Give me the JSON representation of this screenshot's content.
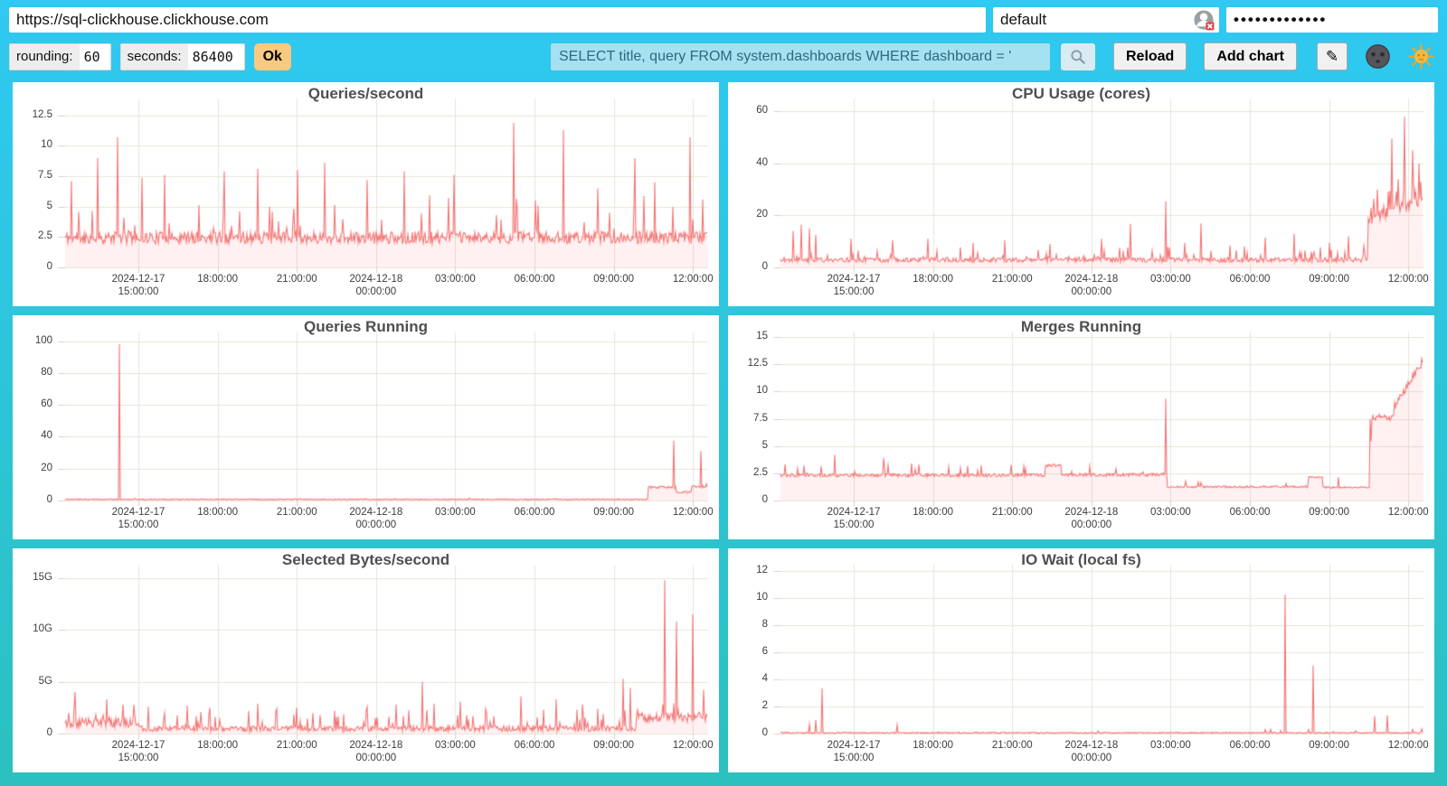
{
  "toolbar": {
    "url_value": "https://sql-clickhouse.clickhouse.com",
    "user_value": "default",
    "password_value": "•••••••••••••",
    "rounding_label": "rounding:",
    "rounding_value": "60",
    "seconds_label": "seconds:",
    "seconds_value": "86400",
    "ok_label": "Ok",
    "query_value": "SELECT title, query FROM system.dashboards WHERE dashboard = '",
    "reload_label": "Reload",
    "add_chart_label": "Add chart",
    "edit_label": "✎",
    "icon_names": {
      "search": "magnifier-icon",
      "user_status": "user-blocked-icon",
      "theme_dark": "moon-face-icon",
      "theme_light": "sun-face-icon"
    }
  },
  "colors": {
    "bg_top": "#2FC9F2",
    "bg_bottom": "#2CC0BE",
    "panel": "#FFFFFF",
    "line": "rgba(243,85,85,0.8)",
    "fill": "rgba(255,80,80,0.08)",
    "grid": "#E7E4DA",
    "tick_dash": "#D5D2C8",
    "title_text": "#4F4F4F",
    "axis_text": "#3C3C3C",
    "ok_bg": "#F7C981",
    "query_bg": "#A5E1F0",
    "query_text": "#2A6B7C"
  },
  "chart_data": {
    "type": "line",
    "grid": true,
    "legend": false,
    "x_range_note": "24h window, 2024-12-17 ~12:50 to 2024-12-18 ~12:50, ticks every 3h",
    "x_ticks": [
      {
        "f": 0.114,
        "lines": [
          "2024-12-17",
          "15:00:00"
        ]
      },
      {
        "f": 0.2372,
        "lines": [
          "18:00:00"
        ]
      },
      {
        "f": 0.3604,
        "lines": [
          "21:00:00"
        ]
      },
      {
        "f": 0.4836,
        "lines": [
          "2024-12-18",
          "00:00:00"
        ]
      },
      {
        "f": 0.6068,
        "lines": [
          "03:00:00"
        ]
      },
      {
        "f": 0.73,
        "lines": [
          "06:00:00"
        ]
      },
      {
        "f": 0.8532,
        "lines": [
          "09:00:00"
        ]
      },
      {
        "f": 0.9764,
        "lines": [
          "12:00:00"
        ]
      }
    ],
    "charts": [
      {
        "title": "Queries/second",
        "seed": 11,
        "ymax": 13.9,
        "y_ticks": [
          {
            "v": 0,
            "label": "0"
          },
          {
            "v": 2.5,
            "label": "2.5"
          },
          {
            "v": 5,
            "label": "5"
          },
          {
            "v": 7.5,
            "label": "7.5"
          },
          {
            "v": 10,
            "label": "10"
          },
          {
            "v": 12.5,
            "label": "12.5"
          }
        ],
        "segments": [
          {
            "from": 0,
            "to": 1,
            "base": 2.4,
            "noise": 1.0,
            "spike_prob": 0.07,
            "spike_amp": 3.2
          }
        ],
        "spikes": [
          [
            0.01,
            7.1
          ],
          [
            0.05,
            9.0
          ],
          [
            0.082,
            10.7
          ],
          [
            0.12,
            7.4
          ],
          [
            0.155,
            7.6
          ],
          [
            0.248,
            7.9
          ],
          [
            0.3,
            8.1
          ],
          [
            0.362,
            8.0
          ],
          [
            0.404,
            8.6
          ],
          [
            0.47,
            7.2
          ],
          [
            0.528,
            7.9
          ],
          [
            0.606,
            7.6
          ],
          [
            0.698,
            11.9
          ],
          [
            0.776,
            11.3
          ],
          [
            0.83,
            6.5
          ],
          [
            0.887,
            9.0
          ],
          [
            0.918,
            7.0
          ],
          [
            0.973,
            10.7
          ]
        ]
      },
      {
        "title": "CPU Usage (cores)",
        "seed": 22,
        "ymax": 65,
        "y_ticks": [
          {
            "v": 0,
            "label": "0"
          },
          {
            "v": 20,
            "label": "20"
          },
          {
            "v": 40,
            "label": "40"
          },
          {
            "v": 60,
            "label": "60"
          }
        ],
        "segments": [
          {
            "from": 0,
            "to": 0.915,
            "base": 2.8,
            "noise": 1.8,
            "spike_prob": 0.1,
            "spike_amp": 5
          },
          {
            "from": 0.915,
            "to": 1,
            "base_start": 18,
            "base_end": 26,
            "noise": 4,
            "spike_prob": 0.3,
            "spike_amp": 9
          }
        ],
        "spikes": [
          [
            0.02,
            14
          ],
          [
            0.032,
            16.5
          ],
          [
            0.045,
            15
          ],
          [
            0.055,
            12.5
          ],
          [
            0.11,
            11
          ],
          [
            0.175,
            10.5
          ],
          [
            0.23,
            11
          ],
          [
            0.3,
            9.5
          ],
          [
            0.35,
            10.5
          ],
          [
            0.42,
            9
          ],
          [
            0.5,
            11
          ],
          [
            0.545,
            16.8
          ],
          [
            0.6,
            25.5
          ],
          [
            0.63,
            9.5
          ],
          [
            0.655,
            16.9
          ],
          [
            0.7,
            8.5
          ],
          [
            0.755,
            11.5
          ],
          [
            0.8,
            13
          ],
          [
            0.855,
            9.5
          ],
          [
            0.885,
            12
          ],
          [
            0.93,
            30
          ],
          [
            0.952,
            49.5
          ],
          [
            0.962,
            34
          ],
          [
            0.972,
            58
          ],
          [
            0.985,
            45
          ],
          [
            0.995,
            40
          ]
        ]
      },
      {
        "title": "Queries Running",
        "seed": 33,
        "ymax": 106,
        "y_ticks": [
          {
            "v": 0,
            "label": "0"
          },
          {
            "v": 20,
            "label": "20"
          },
          {
            "v": 40,
            "label": "40"
          },
          {
            "v": 60,
            "label": "60"
          },
          {
            "v": 80,
            "label": "80"
          },
          {
            "v": 100,
            "label": "100"
          }
        ],
        "segments": [
          {
            "from": 0,
            "to": 0.908,
            "base": 0.7,
            "noise": 0.5,
            "spike_prob": 0.015,
            "spike_amp": 0.9
          },
          {
            "from": 0.908,
            "to": 0.952,
            "base": 8.3,
            "noise": 1.6,
            "spike_prob": 0,
            "spike_amp": 0
          },
          {
            "from": 0.952,
            "to": 0.975,
            "base": 5.2,
            "noise": 1.2,
            "spike_prob": 0,
            "spike_amp": 0
          },
          {
            "from": 0.975,
            "to": 1,
            "base": 8.8,
            "noise": 1.6,
            "spike_prob": 0,
            "spike_amp": 0
          }
        ],
        "spikes": [
          [
            0.085,
            98
          ],
          [
            0.948,
            37.5
          ],
          [
            0.99,
            31
          ],
          [
            0.999,
            10.5
          ]
        ]
      },
      {
        "title": "Merges Running",
        "seed": 44,
        "ymax": 15.5,
        "y_ticks": [
          {
            "v": 0,
            "label": "0"
          },
          {
            "v": 2.5,
            "label": "2.5"
          },
          {
            "v": 5,
            "label": "5"
          },
          {
            "v": 7.5,
            "label": "7.5"
          },
          {
            "v": 10,
            "label": "10"
          },
          {
            "v": 12.5,
            "label": "12.5"
          },
          {
            "v": 15,
            "label": "15"
          }
        ],
        "segments": [
          {
            "from": 0,
            "to": 0.412,
            "base": 2.3,
            "noise": 0.3,
            "spike_prob": 0.06,
            "spike_amp": 1.1
          },
          {
            "from": 0.412,
            "to": 0.437,
            "base": 3.2,
            "noise": 0.25,
            "spike_prob": 0,
            "spike_amp": 0
          },
          {
            "from": 0.437,
            "to": 0.602,
            "base": 2.35,
            "noise": 0.3,
            "spike_prob": 0.06,
            "spike_amp": 0.9
          },
          {
            "from": 0.602,
            "to": 0.822,
            "base": 1.25,
            "noise": 0.18,
            "spike_prob": 0.05,
            "spike_amp": 1.2
          },
          {
            "from": 0.822,
            "to": 0.845,
            "base": 2.15,
            "noise": 0.1,
            "spike_prob": 0,
            "spike_amp": 0
          },
          {
            "from": 0.845,
            "to": 0.918,
            "base": 1.2,
            "noise": 0.15,
            "spike_prob": 0.04,
            "spike_amp": 1.0
          },
          {
            "from": 0.918,
            "to": 0.955,
            "base": 7.6,
            "noise": 0.6,
            "spike_prob": 0,
            "spike_amp": 0
          },
          {
            "from": 0.955,
            "to": 1,
            "base_start": 8.5,
            "base_end": 12.7,
            "noise": 0.7,
            "spike_prob": 0,
            "spike_amp": 0
          }
        ],
        "spikes": [
          [
            0.085,
            4.2
          ],
          [
            0.16,
            3.9
          ],
          [
            0.6,
            9.35
          ],
          [
            0.92,
            5.4
          ],
          [
            0.998,
            13.0
          ]
        ]
      },
      {
        "title": "Selected Bytes/second",
        "seed": 55,
        "ymax": 16.3,
        "unit": "G",
        "y_ticks": [
          {
            "v": 0,
            "label": "0"
          },
          {
            "v": 5,
            "label": "5G"
          },
          {
            "v": 10,
            "label": "10G"
          },
          {
            "v": 15,
            "label": "15G"
          }
        ],
        "segments": [
          {
            "from": 0,
            "to": 0.115,
            "base": 1.0,
            "noise": 0.9,
            "spike_prob": 0.12,
            "spike_amp": 1.6
          },
          {
            "from": 0.115,
            "to": 0.89,
            "base": 0.45,
            "noise": 0.55,
            "spike_prob": 0.1,
            "spike_amp": 1.7
          },
          {
            "from": 0.89,
            "to": 1,
            "base": 1.5,
            "noise": 0.9,
            "spike_prob": 0.12,
            "spike_amp": 1.6
          }
        ],
        "spikes": [
          [
            0.015,
            4.0
          ],
          [
            0.065,
            3.3
          ],
          [
            0.09,
            2.8
          ],
          [
            0.13,
            2.6
          ],
          [
            0.19,
            2.7
          ],
          [
            0.225,
            2.5
          ],
          [
            0.3,
            2.9
          ],
          [
            0.33,
            2.4
          ],
          [
            0.36,
            2.5
          ],
          [
            0.42,
            2.2
          ],
          [
            0.47,
            2.6
          ],
          [
            0.515,
            2.8
          ],
          [
            0.556,
            5.0
          ],
          [
            0.575,
            2.9
          ],
          [
            0.615,
            3.1
          ],
          [
            0.655,
            2.4
          ],
          [
            0.71,
            3.6
          ],
          [
            0.745,
            2.3
          ],
          [
            0.765,
            3.3
          ],
          [
            0.805,
            2.8
          ],
          [
            0.83,
            2.4
          ],
          [
            0.869,
            5.3
          ],
          [
            0.88,
            4.4
          ],
          [
            0.934,
            14.8
          ],
          [
            0.952,
            10.8
          ],
          [
            0.977,
            11.5
          ],
          [
            0.995,
            4.2
          ]
        ]
      },
      {
        "title": "IO Wait (local fs)",
        "seed": 66,
        "ymax": 12.5,
        "y_ticks": [
          {
            "v": 0,
            "label": "0"
          },
          {
            "v": 2,
            "label": "2"
          },
          {
            "v": 4,
            "label": "4"
          },
          {
            "v": 6,
            "label": "6"
          },
          {
            "v": 8,
            "label": "8"
          },
          {
            "v": 10,
            "label": "10"
          },
          {
            "v": 12,
            "label": "12"
          }
        ],
        "segments": [
          {
            "from": 0,
            "to": 1,
            "base": 0.06,
            "noise": 0.08,
            "spike_prob": 0.012,
            "spike_amp": 0.25
          }
        ],
        "spikes": [
          [
            0.045,
            0.7
          ],
          [
            0.055,
            1.0
          ],
          [
            0.065,
            3.35
          ],
          [
            0.1,
            0.12
          ],
          [
            0.182,
            0.65
          ],
          [
            0.245,
            0.1
          ],
          [
            0.35,
            0.12
          ],
          [
            0.55,
            0.1
          ],
          [
            0.7,
            0.12
          ],
          [
            0.755,
            0.3
          ],
          [
            0.786,
            10.3
          ],
          [
            0.83,
            5.05
          ],
          [
            0.86,
            0.15
          ],
          [
            0.925,
            1.3
          ],
          [
            0.945,
            1.35
          ],
          [
            0.985,
            0.3
          ],
          [
            0.998,
            0.35
          ]
        ]
      }
    ]
  }
}
